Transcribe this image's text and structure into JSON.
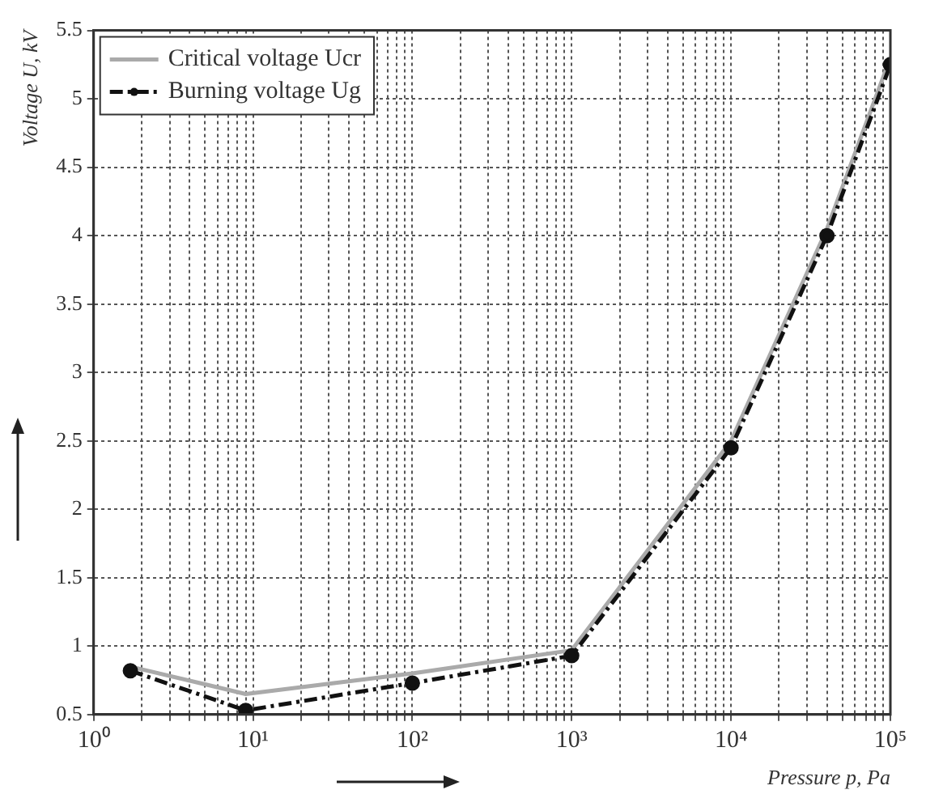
{
  "chart_data": {
    "type": "line",
    "xlabel": "Pressure p, Pa",
    "ylabel": "Voltage U, kV",
    "log": "x",
    "x": [
      1.7,
      9,
      100,
      1000,
      10000,
      40000,
      100000
    ],
    "series": [
      {
        "name": "Critical voltage Ucr",
        "color": "#aaaaaa",
        "line_style": "solid",
        "marker": "none",
        "values": [
          0.85,
          0.65,
          0.8,
          0.97,
          2.5,
          4.05,
          5.3
        ]
      },
      {
        "name": "Burning voltage Ug",
        "color": "#111111",
        "line_style": "dashed",
        "marker": "circle",
        "values": [
          0.82,
          0.53,
          0.73,
          0.93,
          2.45,
          4.0,
          5.25
        ]
      }
    ],
    "xlim": [
      1,
      100000
    ],
    "xticks": [
      {
        "value": 1,
        "label": "10⁰"
      },
      {
        "value": 2,
        "label": null
      },
      {
        "value": 3,
        "label": null
      },
      {
        "value": 4,
        "label": null
      },
      {
        "value": 5,
        "label": null
      },
      {
        "value": 6,
        "label": null
      },
      {
        "value": 7,
        "label": null
      },
      {
        "value": 8,
        "label": null
      },
      {
        "value": 9,
        "label": null
      },
      {
        "value": 10,
        "label": "10¹"
      },
      {
        "value": 20,
        "label": null
      },
      {
        "value": 30,
        "label": null
      },
      {
        "value": 40,
        "label": null
      },
      {
        "value": 50,
        "label": null
      },
      {
        "value": 60,
        "label": null
      },
      {
        "value": 70,
        "label": null
      },
      {
        "value": 80,
        "label": null
      },
      {
        "value": 90,
        "label": null
      },
      {
        "value": 100,
        "label": "10²"
      },
      {
        "value": 200,
        "label": null
      },
      {
        "value": 300,
        "label": null
      },
      {
        "value": 400,
        "label": null
      },
      {
        "value": 500,
        "label": null
      },
      {
        "value": 600,
        "label": null
      },
      {
        "value": 700,
        "label": null
      },
      {
        "value": 800,
        "label": null
      },
      {
        "value": 900,
        "label": null
      },
      {
        "value": 1000,
        "label": "10³"
      },
      {
        "value": 2000,
        "label": null
      },
      {
        "value": 3000,
        "label": null
      },
      {
        "value": 4000,
        "label": null
      },
      {
        "value": 5000,
        "label": null
      },
      {
        "value": 6000,
        "label": null
      },
      {
        "value": 7000,
        "label": null
      },
      {
        "value": 8000,
        "label": null
      },
      {
        "value": 9000,
        "label": null
      },
      {
        "value": 10000,
        "label": "10⁴"
      },
      {
        "value": 20000,
        "label": null
      },
      {
        "value": 30000,
        "label": null
      },
      {
        "value": 40000,
        "label": null
      },
      {
        "value": 50000,
        "label": null
      },
      {
        "value": 60000,
        "label": null
      },
      {
        "value": 70000,
        "label": null
      },
      {
        "value": 80000,
        "label": null
      },
      {
        "value": 90000,
        "label": null
      },
      {
        "value": 100000,
        "label": "10⁵"
      }
    ],
    "ylim": [
      0.5,
      5.5
    ],
    "yticks": [
      0.5,
      1,
      1.5,
      2,
      2.5,
      3,
      3.5,
      4,
      4.5,
      5,
      5.5
    ],
    "grid": true,
    "legend": "top left"
  }
}
